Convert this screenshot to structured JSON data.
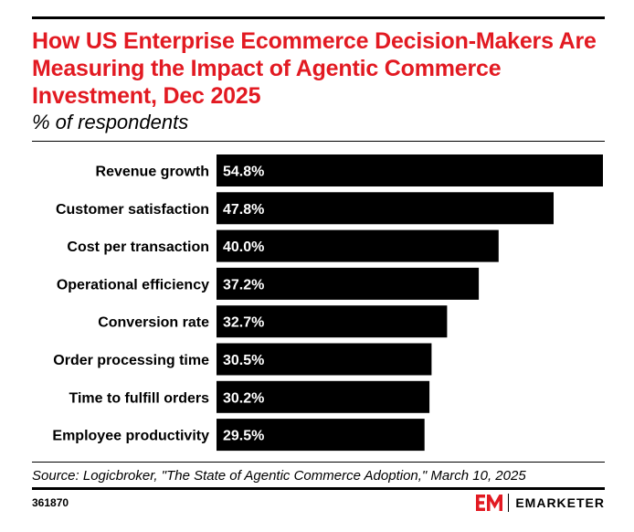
{
  "title": "How US Enterprise Ecommerce Decision-Makers Are Measuring the Impact of Agentic Commerce Investment, Dec 2025",
  "subtitle": "% of respondents",
  "source": "Source: Logicbroker, \"The State of Agentic Commerce Adoption,\" March 10, 2025",
  "chart_id": "361870",
  "brand": {
    "name": "EMARKETER",
    "mark_color": "#e21a22"
  },
  "colors": {
    "title": "#e21a22",
    "bar": "#000000",
    "bar_label": "#ffffff"
  },
  "chart_data": {
    "type": "bar",
    "orientation": "horizontal",
    "categories": [
      "Revenue growth",
      "Customer satisfaction",
      "Cost per transaction",
      "Operational efficiency",
      "Conversion rate",
      "Order processing time",
      "Time to fulfill orders",
      "Employee productivity"
    ],
    "values": [
      54.8,
      47.8,
      40.0,
      37.2,
      32.7,
      30.5,
      30.2,
      29.5
    ],
    "value_labels": [
      "54.8%",
      "47.8%",
      "40.0%",
      "37.2%",
      "32.7%",
      "30.5%",
      "30.2%",
      "29.5%"
    ],
    "title": "How US Enterprise Ecommerce Decision-Makers Are Measuring the Impact of Agentic Commerce Investment, Dec 2025",
    "subtitle": "% of respondents",
    "xlim": [
      0,
      54.8
    ],
    "grid": false,
    "legend": "none"
  }
}
